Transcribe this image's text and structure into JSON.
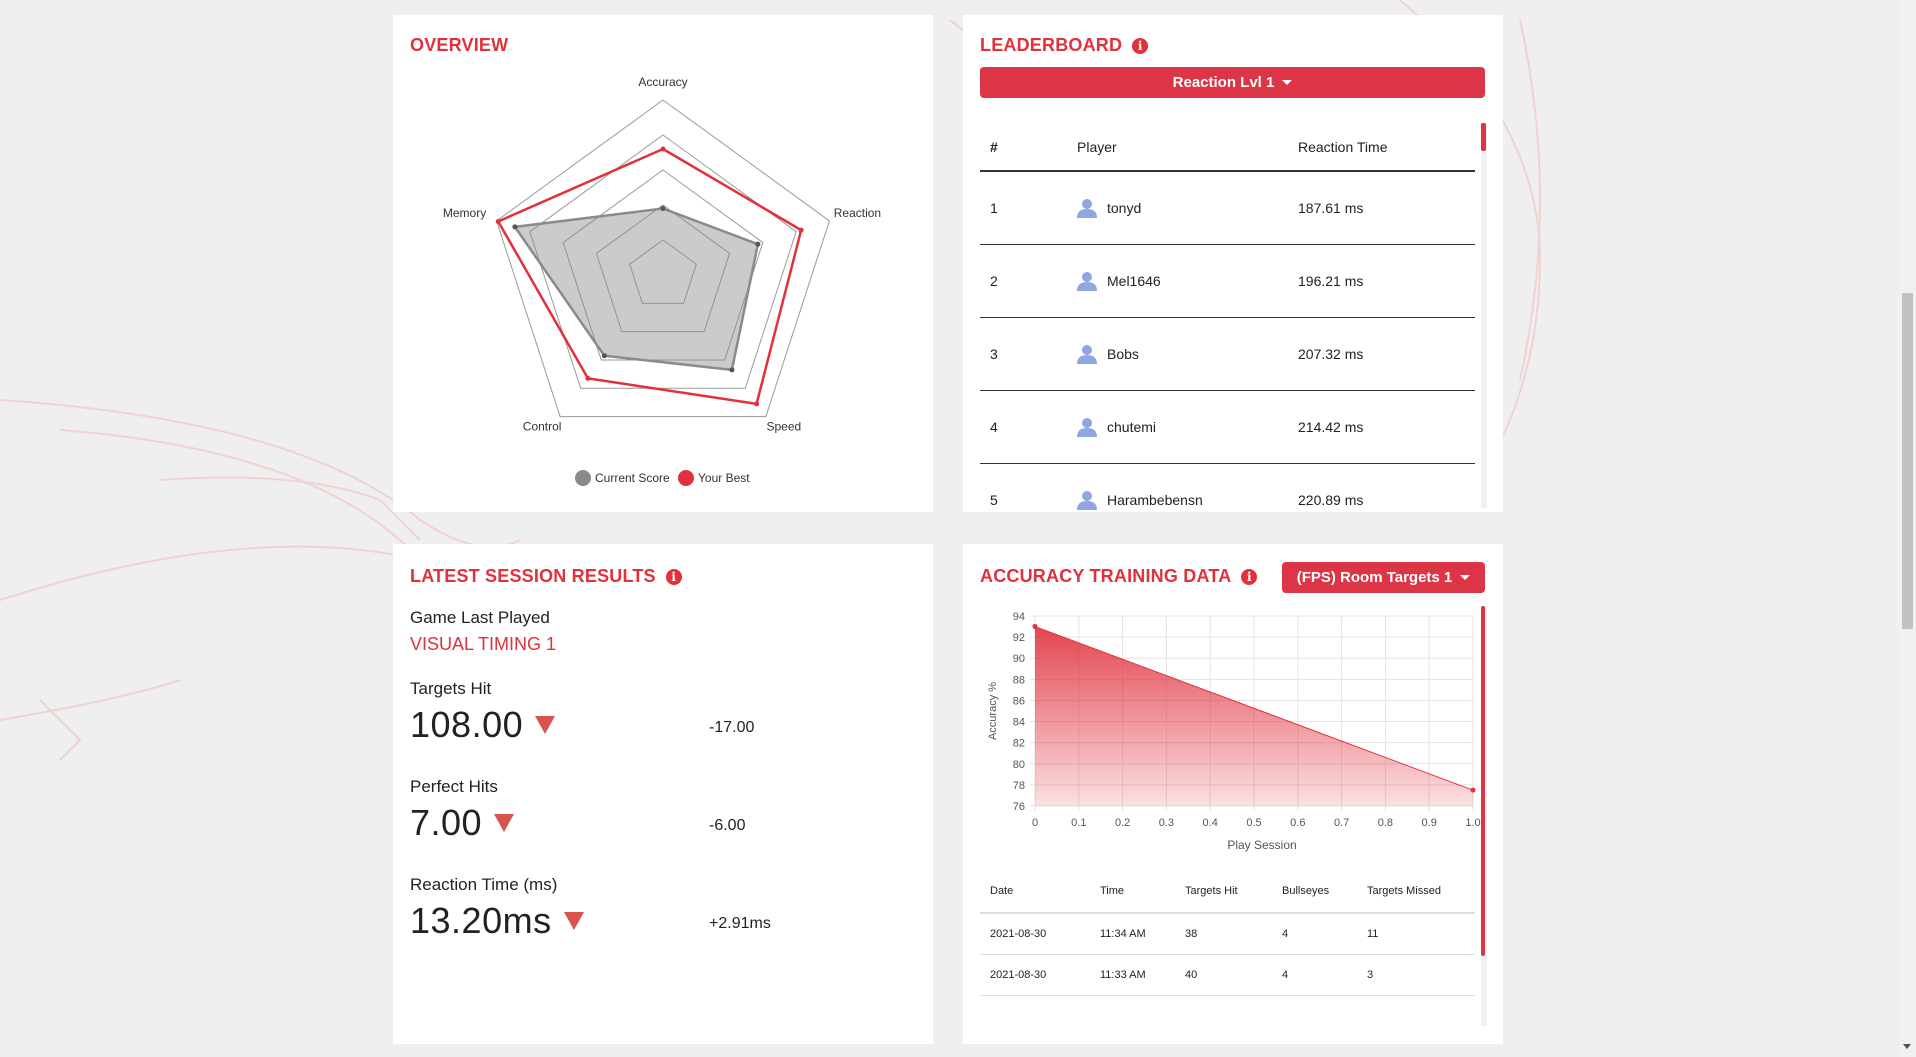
{
  "overview": {
    "title": "OVERVIEW",
    "axes": [
      "Accuracy",
      "Reaction",
      "Speed",
      "Control",
      "Memory"
    ],
    "current_score": [
      0.38,
      0.57,
      0.67,
      0.57,
      0.89
    ],
    "your_best": [
      0.72,
      0.83,
      0.91,
      0.73,
      0.99
    ],
    "legend": {
      "current": "Current Score",
      "best": "Your Best"
    },
    "colors": {
      "current": "#8a8a8a",
      "best": "#e0313d"
    }
  },
  "leaderboard": {
    "title": "LEADERBOARD",
    "dropdown_label": "Reaction Lvl 1",
    "columns": [
      "#",
      "Player",
      "Reaction Time"
    ],
    "rows": [
      {
        "rank": "1",
        "player": "tonyd",
        "time": "187.61 ms"
      },
      {
        "rank": "2",
        "player": "Mel1646",
        "time": "196.21 ms"
      },
      {
        "rank": "3",
        "player": "Bobs",
        "time": "207.32 ms"
      },
      {
        "rank": "4",
        "player": "chutemi",
        "time": "214.42 ms"
      },
      {
        "rank": "5",
        "player": "Harambebensn",
        "time": "220.89 ms"
      }
    ]
  },
  "session": {
    "title": "LATEST SESSION RESULTS",
    "game_label": "Game Last Played",
    "game_name": "VISUAL TIMING 1",
    "metrics": [
      {
        "label": "Targets Hit",
        "value": "108.00",
        "delta": "-17.00"
      },
      {
        "label": "Perfect Hits",
        "value": "7.00",
        "delta": "-6.00"
      },
      {
        "label": "Reaction Time (ms)",
        "value": "13.20ms",
        "delta": "+2.91ms"
      }
    ]
  },
  "accuracy": {
    "title": "ACCURACY TRAINING DATA",
    "dropdown_label": "(FPS) Room Targets 1",
    "table": {
      "columns": [
        "Date",
        "Time",
        "Targets Hit",
        "Bullseyes",
        "Targets Missed"
      ],
      "rows": [
        [
          "2021-08-30",
          "11:34 AM",
          "38",
          "4",
          "11"
        ],
        [
          "2021-08-30",
          "11:33 AM",
          "40",
          "4",
          "3"
        ]
      ]
    }
  },
  "chart_data": {
    "type": "area",
    "x": [
      0,
      1
    ],
    "y": [
      93,
      77.5
    ],
    "xlabel": "Play Session",
    "ylabel": "Accuracy %",
    "xlim": [
      0,
      1
    ],
    "ylim": [
      76,
      94
    ],
    "xticks": [
      "0",
      "0.1",
      "0.2",
      "0.3",
      "0.4",
      "0.5",
      "0.6",
      "0.7",
      "0.8",
      "0.9",
      "1.0"
    ],
    "yticks": [
      "76",
      "78",
      "80",
      "82",
      "84",
      "86",
      "88",
      "90",
      "92",
      "94"
    ],
    "grid": true,
    "color": "#e0313d"
  }
}
